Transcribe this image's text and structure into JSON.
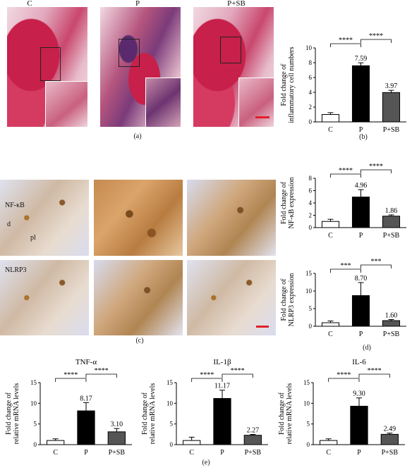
{
  "panel_labels": [
    "(a)",
    "(b)",
    "(c)",
    "(d)",
    "(e)"
  ],
  "image_columns": [
    "C",
    "P",
    "P+SB"
  ],
  "ihc_row_labels": [
    "NF-κB",
    "NLRP3"
  ],
  "ihc_annotations": [
    "d",
    "pl"
  ],
  "colors": {
    "group_c": "#ffffff",
    "group_p": "#000000",
    "group_psb": "#555555",
    "scalebar": "#e0202a"
  },
  "chart_data": [
    {
      "id": "b",
      "type": "bar",
      "ylabel": "Fold change of inflammatory cell numbers",
      "categories": [
        "C",
        "P",
        "P+SB"
      ],
      "values": [
        1,
        7.59,
        3.97
      ],
      "errors": [
        0.25,
        0.4,
        0.3
      ],
      "data_labels": [
        "",
        "7.59",
        "3.97"
      ],
      "ylim": [
        0,
        10
      ],
      "yticks": [
        0,
        2,
        4,
        6,
        8,
        10
      ],
      "significance": [
        {
          "from": 0,
          "to": 1,
          "label": "****"
        },
        {
          "from": 1,
          "to": 2,
          "label": "****"
        }
      ]
    },
    {
      "id": "d1",
      "type": "bar",
      "ylabel": "Fold change of NF-κB expression",
      "categories": [
        "C",
        "P",
        "P+SB"
      ],
      "values": [
        1,
        4.96,
        1.86
      ],
      "errors": [
        0.35,
        1.2,
        0.2
      ],
      "data_labels": [
        "",
        "4.96",
        "1.86"
      ],
      "ylim": [
        0,
        8
      ],
      "yticks": [
        0,
        2,
        4,
        6,
        8
      ],
      "significance": [
        {
          "from": 0,
          "to": 1,
          "label": "****"
        },
        {
          "from": 1,
          "to": 2,
          "label": "****"
        }
      ]
    },
    {
      "id": "d2",
      "type": "bar",
      "ylabel": "Fold change of NLRP3 expression",
      "categories": [
        "C",
        "P",
        "P+SB"
      ],
      "values": [
        1,
        8.7,
        1.6
      ],
      "errors": [
        0.5,
        3.7,
        0.3
      ],
      "data_labels": [
        "",
        "8.70",
        "1.60"
      ],
      "ylim": [
        0,
        15
      ],
      "yticks": [
        0,
        5,
        10,
        15
      ],
      "significance": [
        {
          "from": 0,
          "to": 1,
          "label": "***"
        },
        {
          "from": 1,
          "to": 2,
          "label": "***"
        }
      ]
    },
    {
      "id": "e1",
      "type": "bar",
      "title": "TNF-α",
      "ylabel": "Fold change of relative mRNA levels",
      "categories": [
        "C",
        "P",
        "P+SB"
      ],
      "values": [
        1,
        8.17,
        3.1
      ],
      "errors": [
        0.4,
        2.0,
        0.8
      ],
      "data_labels": [
        "",
        "8.17",
        "3.10"
      ],
      "ylim": [
        0,
        15
      ],
      "yticks": [
        0,
        5,
        10,
        15
      ],
      "significance": [
        {
          "from": 0,
          "to": 1,
          "label": "****"
        },
        {
          "from": 1,
          "to": 2,
          "label": "****"
        }
      ]
    },
    {
      "id": "e2",
      "type": "bar",
      "title": "IL-1β",
      "ylabel": "Fold change of relative mRNA levels",
      "categories": [
        "C",
        "P",
        "P+SB"
      ],
      "values": [
        1,
        11.17,
        2.27
      ],
      "errors": [
        0.8,
        2.0,
        0.2
      ],
      "data_labels": [
        "",
        "11.17",
        "2.27"
      ],
      "ylim": [
        0,
        15
      ],
      "yticks": [
        0,
        5,
        10,
        15
      ],
      "significance": [
        {
          "from": 0,
          "to": 1,
          "label": "****"
        },
        {
          "from": 1,
          "to": 2,
          "label": "****"
        }
      ]
    },
    {
      "id": "e3",
      "type": "bar",
      "title": "IL-6",
      "ylabel": "Fold change of relative mRNA levels",
      "categories": [
        "C",
        "P",
        "P+SB"
      ],
      "values": [
        1,
        9.3,
        2.49
      ],
      "errors": [
        0.4,
        2.0,
        0.3
      ],
      "data_labels": [
        "",
        "9.30",
        "2.49"
      ],
      "ylim": [
        0,
        15
      ],
      "yticks": [
        0,
        5,
        10,
        15
      ],
      "significance": [
        {
          "from": 0,
          "to": 1,
          "label": "****"
        },
        {
          "from": 1,
          "to": 2,
          "label": "****"
        }
      ]
    }
  ]
}
